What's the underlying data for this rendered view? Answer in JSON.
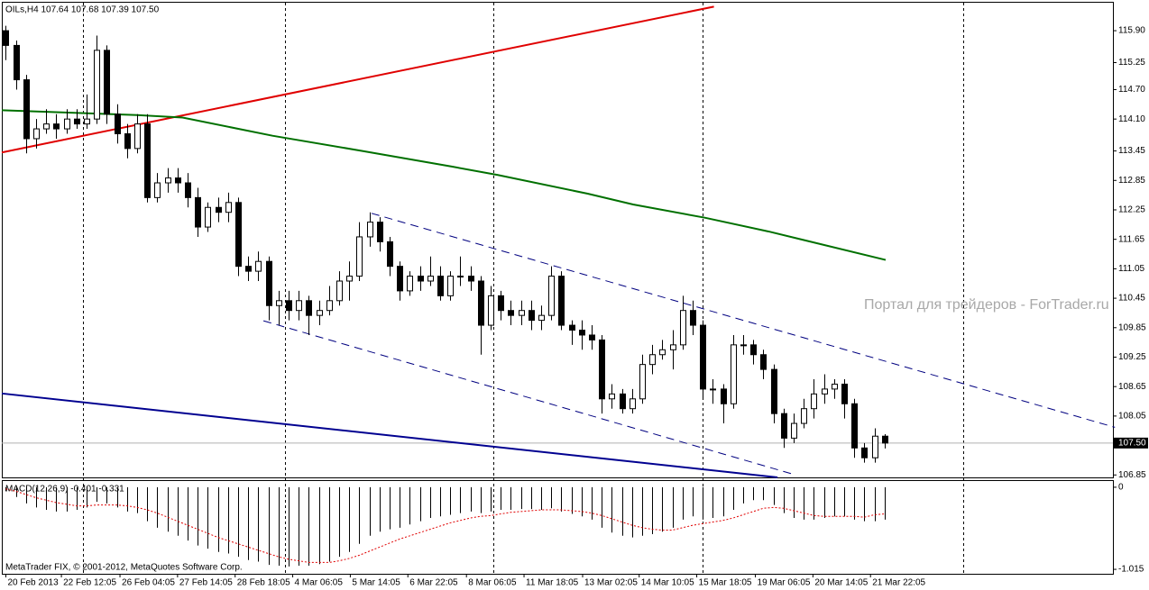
{
  "chart_data": {
    "type": "candlestick",
    "title": "OILs,H4  107.64 107.68 107.39 107.50",
    "watermark": "Портал для трейдеров - ForTrader.ru",
    "footer": "MetaTrader FIX, © 2001-2012, MetaQuotes Software Corp.",
    "xlim": [
      -0.4,
      109.6
    ],
    "ylim": [
      106.8,
      116.47
    ],
    "yticks": [
      {
        "value": 115.9,
        "label": "115.90"
      },
      {
        "value": 115.25,
        "label": "115.25"
      },
      {
        "value": 114.7,
        "label": "114.70"
      },
      {
        "value": 114.1,
        "label": "114.10"
      },
      {
        "value": 113.45,
        "label": "113.45"
      },
      {
        "value": 112.85,
        "label": "112.85"
      },
      {
        "value": 112.25,
        "label": "112.25"
      },
      {
        "value": 111.65,
        "label": "111.65"
      },
      {
        "value": 111.05,
        "label": "111.05"
      },
      {
        "value": 110.45,
        "label": "110.45"
      },
      {
        "value": 109.85,
        "label": "109.85"
      },
      {
        "value": 109.25,
        "label": "109.25"
      },
      {
        "value": 108.65,
        "label": "108.65"
      },
      {
        "value": 108.05,
        "label": "108.05"
      },
      {
        "value": 106.85,
        "label": "106.85"
      }
    ],
    "current_price": {
      "value": 107.5,
      "label": "107.50"
    },
    "xticks": [
      {
        "value": 0,
        "label": "20 Feb 2013"
      },
      {
        "value": 5.5,
        "label": "22 Feb 12:05"
      },
      {
        "value": 11.3,
        "label": "26 Feb 04:05"
      },
      {
        "value": 17.0,
        "label": "27 Feb 14:05"
      },
      {
        "value": 22.7,
        "label": "28 Feb 18:05"
      },
      {
        "value": 28.4,
        "label": "4 Mar 06:05"
      },
      {
        "value": 34.1,
        "label": "5 Mar 14:05"
      },
      {
        "value": 39.8,
        "label": "6 Mar 22:05"
      },
      {
        "value": 45.6,
        "label": "8 Mar 06:05"
      },
      {
        "value": 51.3,
        "label": "11 Mar 18:05"
      },
      {
        "value": 57.1,
        "label": "13 Mar 02:05"
      },
      {
        "value": 62.7,
        "label": "14 Mar 10:05"
      },
      {
        "value": 68.4,
        "label": "15 Mar 18:05"
      },
      {
        "value": 74.2,
        "label": "19 Mar 06:05"
      },
      {
        "value": 79.9,
        "label": "20 Mar 14:05"
      },
      {
        "value": 85.6,
        "label": "21 Mar 22:05"
      }
    ],
    "up_color": "#ffffff",
    "down_color": "#000000",
    "wick_color": "#000000",
    "candles": [
      [
        115.9,
        116.0,
        115.3,
        115.6
      ],
      [
        115.6,
        115.7,
        114.7,
        114.9
      ],
      [
        114.9,
        115.0,
        113.4,
        113.7
      ],
      [
        113.7,
        114.1,
        113.5,
        113.9
      ],
      [
        113.9,
        114.3,
        113.8,
        114.0
      ],
      [
        114.0,
        114.2,
        113.7,
        113.9
      ],
      [
        113.9,
        114.3,
        113.8,
        114.1
      ],
      [
        114.1,
        114.3,
        113.9,
        114.0
      ],
      [
        114.0,
        114.6,
        113.9,
        114.1
      ],
      [
        114.1,
        115.8,
        114.0,
        115.5
      ],
      [
        115.5,
        115.6,
        114.0,
        114.2
      ],
      [
        114.2,
        114.4,
        113.6,
        113.8
      ],
      [
        113.8,
        114.0,
        113.3,
        113.5
      ],
      [
        113.5,
        114.2,
        113.4,
        114.0
      ],
      [
        114.0,
        114.2,
        112.4,
        112.5
      ],
      [
        112.5,
        113.0,
        112.4,
        112.8
      ],
      [
        112.8,
        113.1,
        112.6,
        112.9
      ],
      [
        112.9,
        113.1,
        112.6,
        112.8
      ],
      [
        112.8,
        113.0,
        112.3,
        112.5
      ],
      [
        112.5,
        112.7,
        111.7,
        111.9
      ],
      [
        111.9,
        112.4,
        111.8,
        112.3
      ],
      [
        112.3,
        112.5,
        112.0,
        112.2
      ],
      [
        112.2,
        112.6,
        112.0,
        112.4
      ],
      [
        112.4,
        112.5,
        110.9,
        111.1
      ],
      [
        111.1,
        111.3,
        110.8,
        111.0
      ],
      [
        111.0,
        111.4,
        110.8,
        111.2
      ],
      [
        111.2,
        111.3,
        110.0,
        110.3
      ],
      [
        110.3,
        110.6,
        109.9,
        110.4
      ],
      [
        110.4,
        110.6,
        110.0,
        110.2
      ],
      [
        110.2,
        110.6,
        110.0,
        110.4
      ],
      [
        110.4,
        110.5,
        109.7,
        110.1
      ],
      [
        110.1,
        110.4,
        109.9,
        110.2
      ],
      [
        110.2,
        110.7,
        110.1,
        110.4
      ],
      [
        110.4,
        111.0,
        110.3,
        110.8
      ],
      [
        110.8,
        111.2,
        110.4,
        110.9
      ],
      [
        110.9,
        112.0,
        110.8,
        111.7
      ],
      [
        111.7,
        112.2,
        111.5,
        112.0
      ],
      [
        112.0,
        112.1,
        111.4,
        111.6
      ],
      [
        111.6,
        111.7,
        110.9,
        111.1
      ],
      [
        111.1,
        111.2,
        110.4,
        110.6
      ],
      [
        110.6,
        111.0,
        110.5,
        110.9
      ],
      [
        110.9,
        111.1,
        110.6,
        110.8
      ],
      [
        110.8,
        111.3,
        110.7,
        110.9
      ],
      [
        110.9,
        111.1,
        110.4,
        110.5
      ],
      [
        110.5,
        111.0,
        110.4,
        110.9
      ],
      [
        110.9,
        111.3,
        110.7,
        110.9
      ],
      [
        110.9,
        111.1,
        110.6,
        110.8
      ],
      [
        110.8,
        110.9,
        109.3,
        109.9
      ],
      [
        109.9,
        110.7,
        109.8,
        110.5
      ],
      [
        110.5,
        110.6,
        110.0,
        110.2
      ],
      [
        110.2,
        110.4,
        109.9,
        110.1
      ],
      [
        110.1,
        110.4,
        109.9,
        110.2
      ],
      [
        110.2,
        110.4,
        109.8,
        110.0
      ],
      [
        110.0,
        110.3,
        109.8,
        110.1
      ],
      [
        110.1,
        111.1,
        110.0,
        110.9
      ],
      [
        110.9,
        111.0,
        109.8,
        109.9
      ],
      [
        109.9,
        110.0,
        109.5,
        109.8
      ],
      [
        109.8,
        110.0,
        109.4,
        109.7
      ],
      [
        109.7,
        109.9,
        109.4,
        109.6
      ],
      [
        109.6,
        109.7,
        108.1,
        108.4
      ],
      [
        108.4,
        108.7,
        108.2,
        108.5
      ],
      [
        108.5,
        108.6,
        108.1,
        108.2
      ],
      [
        108.2,
        108.6,
        108.1,
        108.4
      ],
      [
        108.4,
        109.3,
        108.3,
        109.1
      ],
      [
        109.1,
        109.5,
        108.9,
        109.3
      ],
      [
        109.3,
        109.6,
        109.2,
        109.4
      ],
      [
        109.4,
        109.8,
        109.0,
        109.5
      ],
      [
        109.5,
        110.5,
        109.4,
        110.2
      ],
      [
        110.2,
        110.4,
        109.7,
        109.9
      ],
      [
        109.9,
        110.0,
        108.4,
        108.6
      ],
      [
        108.6,
        108.8,
        108.3,
        108.6
      ],
      [
        108.6,
        108.7,
        107.9,
        108.3
      ],
      [
        108.3,
        109.7,
        108.2,
        109.5
      ],
      [
        109.5,
        109.7,
        109.3,
        109.5
      ],
      [
        109.5,
        109.6,
        109.1,
        109.3
      ],
      [
        109.3,
        109.4,
        108.8,
        109.0
      ],
      [
        109.0,
        109.1,
        107.9,
        108.1
      ],
      [
        108.1,
        108.2,
        107.4,
        107.6
      ],
      [
        107.6,
        108.1,
        107.5,
        107.9
      ],
      [
        107.9,
        108.4,
        107.8,
        108.2
      ],
      [
        108.2,
        108.8,
        108.0,
        108.5
      ],
      [
        108.5,
        108.9,
        108.3,
        108.6
      ],
      [
        108.6,
        108.8,
        108.4,
        108.7
      ],
      [
        108.7,
        108.8,
        108.0,
        108.3
      ],
      [
        108.3,
        108.4,
        107.2,
        107.4
      ],
      [
        107.4,
        107.5,
        107.1,
        107.2
      ],
      [
        107.2,
        107.8,
        107.1,
        107.64
      ],
      [
        107.64,
        107.68,
        107.39,
        107.5
      ]
    ],
    "lines": [
      {
        "color": "#e00000",
        "dash": false,
        "x": [
          -0.4,
          70.1
        ],
        "values": [
          113.42,
          116.39
        ]
      },
      {
        "color": "#007000",
        "dash": false,
        "x": [
          -0.4,
          13,
          17.5,
          26.4,
          35.3,
          44.2,
          48.7,
          57.6,
          62.1,
          69.2,
          75.5,
          87.1
        ],
        "values": [
          114.28,
          114.18,
          114.13,
          113.76,
          113.45,
          113.13,
          112.96,
          112.58,
          112.36,
          112.09,
          111.81,
          111.23
        ]
      },
      {
        "color": "#000090",
        "dash": false,
        "x": [
          -0.4,
          76.4
        ],
        "values": [
          108.51,
          106.8
        ]
      },
      {
        "color": "#000080",
        "dash": true,
        "x": [
          36.2,
          109.8
        ],
        "values": [
          112.18,
          107.82
        ]
      },
      {
        "color": "#000080",
        "dash": true,
        "x": [
          25.5,
          78.2
        ],
        "values": [
          109.99,
          106.85
        ]
      }
    ],
    "indicator": {
      "title": "MACD(12,26,9) -0.401 -0.331",
      "ylim": [
        -1.07,
        0.077
      ],
      "yticks": [
        0,
        -1.015
      ],
      "histogram_color": "#000000",
      "signal_color": "#e00000",
      "histogram": [
        -0.05,
        -0.12,
        -0.2,
        -0.25,
        -0.28,
        -0.3,
        -0.3,
        -0.28,
        -0.25,
        -0.18,
        -0.2,
        -0.25,
        -0.3,
        -0.32,
        -0.42,
        -0.5,
        -0.55,
        -0.6,
        -0.66,
        -0.72,
        -0.76,
        -0.8,
        -0.82,
        -0.86,
        -0.9,
        -0.92,
        -0.96,
        -0.97,
        -0.98,
        -0.97,
        -0.97,
        -0.95,
        -0.92,
        -0.86,
        -0.8,
        -0.7,
        -0.6,
        -0.55,
        -0.52,
        -0.5,
        -0.46,
        -0.42,
        -0.38,
        -0.36,
        -0.34,
        -0.32,
        -0.3,
        -0.32,
        -0.3,
        -0.28,
        -0.28,
        -0.27,
        -0.27,
        -0.28,
        -0.26,
        -0.3,
        -0.33,
        -0.36,
        -0.4,
        -0.5,
        -0.56,
        -0.6,
        -0.62,
        -0.6,
        -0.58,
        -0.55,
        -0.5,
        -0.4,
        -0.36,
        -0.4,
        -0.38,
        -0.36,
        -0.28,
        -0.2,
        -0.16,
        -0.16,
        -0.22,
        -0.32,
        -0.38,
        -0.4,
        -0.4,
        -0.38,
        -0.36,
        -0.36,
        -0.4,
        -0.42,
        -0.42,
        -0.4
      ],
      "signal": [
        -0.02,
        -0.05,
        -0.09,
        -0.13,
        -0.16,
        -0.19,
        -0.21,
        -0.23,
        -0.23,
        -0.22,
        -0.22,
        -0.22,
        -0.23,
        -0.25,
        -0.28,
        -0.32,
        -0.37,
        -0.42,
        -0.47,
        -0.52,
        -0.57,
        -0.62,
        -0.66,
        -0.7,
        -0.74,
        -0.78,
        -0.82,
        -0.86,
        -0.89,
        -0.91,
        -0.93,
        -0.93,
        -0.93,
        -0.91,
        -0.88,
        -0.84,
        -0.79,
        -0.74,
        -0.69,
        -0.64,
        -0.6,
        -0.56,
        -0.52,
        -0.48,
        -0.44,
        -0.41,
        -0.38,
        -0.36,
        -0.35,
        -0.33,
        -0.31,
        -0.3,
        -0.29,
        -0.28,
        -0.28,
        -0.28,
        -0.29,
        -0.3,
        -0.32,
        -0.35,
        -0.39,
        -0.43,
        -0.47,
        -0.5,
        -0.52,
        -0.53,
        -0.53,
        -0.5,
        -0.47,
        -0.45,
        -0.43,
        -0.41,
        -0.38,
        -0.34,
        -0.3,
        -0.26,
        -0.25,
        -0.26,
        -0.29,
        -0.32,
        -0.35,
        -0.36,
        -0.36,
        -0.36,
        -0.36,
        -0.37,
        -0.34,
        -0.33
      ]
    }
  }
}
